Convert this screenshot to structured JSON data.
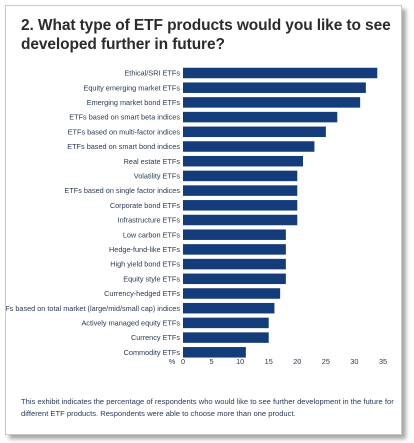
{
  "title": "2. What type of ETF products would you like to see developed further in future?",
  "footnote": "This exhibit indicates the percentage of respondents who would like to see further development in the future for different ETF products. Respondents were able to choose more than one product.",
  "colors": {
    "bar": "#143c7a",
    "title": "#2b2b2b",
    "text": "#2a3a55"
  },
  "chart_data": {
    "type": "bar",
    "orientation": "horizontal",
    "title": "2. What type of ETF products would you like to see developed further in future?",
    "xlabel": "%",
    "ylabel": "",
    "xlim": [
      0,
      35
    ],
    "xticks": [
      0,
      5,
      10,
      15,
      20,
      25,
      30,
      35
    ],
    "grid": false,
    "categories": [
      "Ethical/SRI ETFs",
      "Equity emerging market ETFs",
      "Emerging market bond ETFs",
      "ETFs based on smart beta indices",
      "ETFs based on multi-factor indices",
      "ETFs based on smart bond indices",
      "Real estate ETFs",
      "Volatility ETFs",
      "ETFs based on single factor indices",
      "Corporate bond ETFs",
      "Infrastructure ETFs",
      "Low carbon ETFs",
      "Hedge-fund-like ETFs",
      "High yield bond ETFs",
      "Equity style ETFs",
      "Currency-hedged ETFs",
      "ETFs based on total market (large/mid/small cap) indices",
      "Actively managed equity ETFs",
      "Currency ETFs",
      "Commodity ETFs"
    ],
    "values": [
      34,
      32,
      31,
      27,
      25,
      23,
      21,
      20,
      20,
      20,
      20,
      18,
      18,
      18,
      18,
      17,
      16,
      15,
      15,
      11
    ]
  }
}
